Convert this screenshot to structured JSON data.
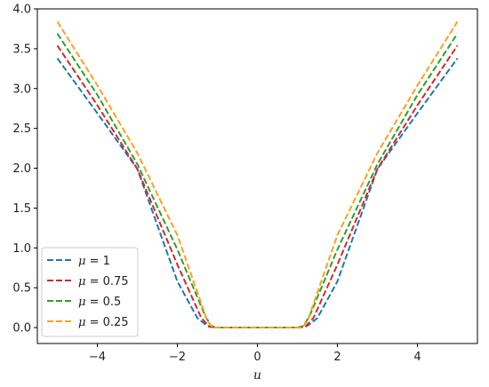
{
  "chart_data": {
    "type": "line",
    "title": "",
    "xlabel": "u",
    "ylabel": "",
    "xlim": [
      -5.5,
      5.5
    ],
    "ylim": [
      -0.2,
      4.0
    ],
    "xticks": [
      -4,
      -2,
      0,
      2,
      4
    ],
    "xtick_labels": [
      "−4",
      "−2",
      "0",
      "2",
      "4"
    ],
    "yticks": [
      0.0,
      0.5,
      1.0,
      1.5,
      2.0,
      2.5,
      3.0,
      3.5,
      4.0
    ],
    "ytick_labels": [
      "0.0",
      "0.5",
      "1.0",
      "1.5",
      "2.0",
      "2.5",
      "3.0",
      "3.5",
      "4.0"
    ],
    "grid": false,
    "legend_position": "lower-left",
    "line_style": "dashed",
    "series": [
      {
        "name": "μ = 1",
        "color": "#1f77b4",
        "x": [
          -5,
          -4,
          -3,
          -2,
          -1.5,
          -1.3,
          -1.2,
          -1.0,
          0,
          1.0,
          1.2,
          1.3,
          1.5,
          2,
          3,
          4,
          5
        ],
        "y": [
          3.38,
          2.69,
          1.99,
          0.58,
          0.12,
          0.04,
          0.01,
          0.0,
          0.0,
          0.0,
          0.01,
          0.04,
          0.12,
          0.58,
          1.99,
          2.69,
          3.38
        ]
      },
      {
        "name": "μ = 0.75",
        "color": "#d62728",
        "x": [
          -5,
          -4,
          -3,
          -2,
          -1.4,
          -1.2,
          -1.0,
          0,
          1.0,
          1.2,
          1.4,
          2,
          3,
          4,
          5
        ],
        "y": [
          3.54,
          2.79,
          1.99,
          0.79,
          0.12,
          0.01,
          0.0,
          0.0,
          0.0,
          0.01,
          0.12,
          0.79,
          1.99,
          2.79,
          3.54
        ]
      },
      {
        "name": "μ = 0.5",
        "color": "#2ca02c",
        "x": [
          -5,
          -4,
          -3,
          -2,
          -1.3,
          -1.15,
          -1.0,
          0,
          1.0,
          1.15,
          1.3,
          2,
          3,
          4,
          5
        ],
        "y": [
          3.69,
          2.92,
          2.05,
          0.98,
          0.14,
          0.02,
          0.0,
          0.0,
          0.0,
          0.02,
          0.14,
          0.98,
          2.05,
          2.92,
          3.69
        ]
      },
      {
        "name": "μ = 0.25",
        "color": "#ff9f1c",
        "x": [
          -5,
          -4,
          -3,
          -2,
          -1.25,
          -1.15,
          -1.1,
          0,
          1.1,
          1.15,
          1.25,
          2,
          3,
          4,
          5
        ],
        "y": [
          3.84,
          3.04,
          2.19,
          1.16,
          0.08,
          0.02,
          0.0,
          0.0,
          0.0,
          0.02,
          0.08,
          1.16,
          2.19,
          3.04,
          3.84
        ]
      }
    ]
  },
  "legend": {
    "items": [
      {
        "symbol": "μ",
        "value": " = 1"
      },
      {
        "symbol": "μ",
        "value": " = 0.75"
      },
      {
        "symbol": "μ",
        "value": " = 0.5"
      },
      {
        "symbol": "μ",
        "value": " = 0.25"
      }
    ]
  }
}
